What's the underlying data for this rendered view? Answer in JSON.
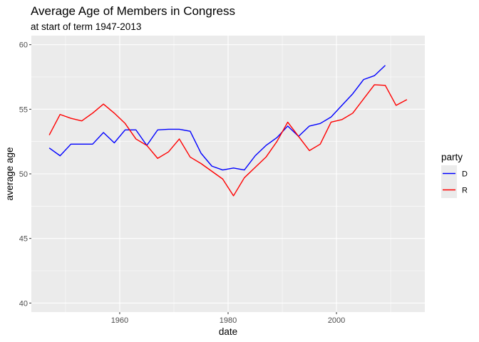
{
  "chart_data": {
    "type": "line",
    "title": "Average Age of Members in Congress",
    "subtitle": "at start of term 1947-2013",
    "xlabel": "date",
    "ylabel": "average age",
    "xlim": [
      1943.7,
      2016.3
    ],
    "ylim": [
      39.3,
      60.7
    ],
    "x_ticks": [
      1960,
      1980,
      2000
    ],
    "x_tick_labels": [
      "1960",
      "1980",
      "2000"
    ],
    "y_ticks": [
      40,
      45,
      50,
      55,
      60
    ],
    "y_tick_labels": [
      "40",
      "45",
      "50",
      "55",
      "60"
    ],
    "grid": true,
    "legend": {
      "title": "party",
      "position": "right"
    },
    "series": [
      {
        "name": "D",
        "color": "#0000ff",
        "points": [
          [
            1947,
            52.0
          ],
          [
            1949,
            51.4
          ],
          [
            1951,
            52.3
          ],
          [
            1953,
            52.3
          ],
          [
            1955,
            52.3
          ],
          [
            1957,
            53.2
          ],
          [
            1959,
            52.4
          ],
          [
            1961,
            53.4
          ],
          [
            1963,
            53.4
          ],
          [
            1965,
            52.2
          ],
          [
            1967,
            53.4
          ],
          [
            1969,
            53.45
          ],
          [
            1971,
            53.45
          ],
          [
            1973,
            53.3
          ],
          [
            1975,
            51.6
          ],
          [
            1977,
            50.6
          ],
          [
            1979,
            50.3
          ],
          [
            1981,
            50.45
          ],
          [
            1983,
            50.3
          ],
          [
            1985,
            51.4
          ],
          [
            1987,
            52.2
          ],
          [
            1989,
            52.8
          ],
          [
            1991,
            53.7
          ],
          [
            1993,
            52.9
          ],
          [
            1995,
            53.7
          ],
          [
            1997,
            53.9
          ],
          [
            1999,
            54.4
          ],
          [
            2001,
            55.3
          ],
          [
            2003,
            56.2
          ],
          [
            2005,
            57.3
          ],
          [
            2007,
            57.6
          ],
          [
            2009,
            58.4
          ]
        ]
      },
      {
        "name": "R",
        "color": "#ff0000",
        "points": [
          [
            1947,
            53.0
          ],
          [
            1949,
            54.6
          ],
          [
            1951,
            54.3
          ],
          [
            1953,
            54.1
          ],
          [
            1955,
            54.7
          ],
          [
            1957,
            55.4
          ],
          [
            1959,
            54.7
          ],
          [
            1961,
            53.9
          ],
          [
            1963,
            52.7
          ],
          [
            1965,
            52.2
          ],
          [
            1967,
            51.2
          ],
          [
            1969,
            51.7
          ],
          [
            1971,
            52.7
          ],
          [
            1973,
            51.3
          ],
          [
            1975,
            50.8
          ],
          [
            1977,
            50.2
          ],
          [
            1979,
            49.6
          ],
          [
            1981,
            48.3
          ],
          [
            1983,
            49.7
          ],
          [
            1985,
            50.5
          ],
          [
            1987,
            51.3
          ],
          [
            1989,
            52.5
          ],
          [
            1991,
            54.0
          ],
          [
            1993,
            52.9
          ],
          [
            1995,
            51.8
          ],
          [
            1997,
            52.3
          ],
          [
            1999,
            54.0
          ],
          [
            2001,
            54.2
          ],
          [
            2003,
            54.7
          ],
          [
            2005,
            55.8
          ],
          [
            2007,
            56.9
          ],
          [
            2009,
            56.85
          ],
          [
            2011,
            55.3
          ],
          [
            2013,
            55.75
          ]
        ]
      }
    ]
  }
}
